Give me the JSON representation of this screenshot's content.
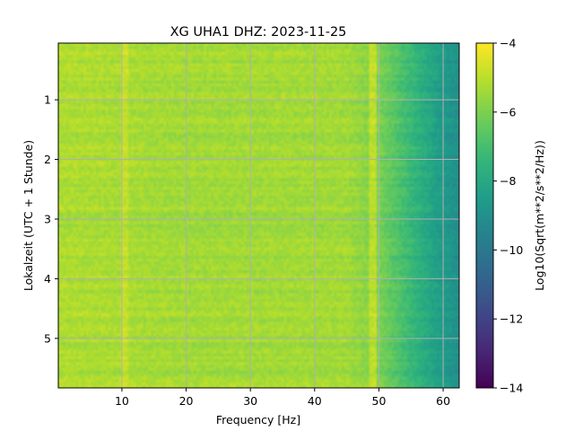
{
  "chart_data": {
    "type": "heatmap",
    "title": "XG UHA1  DHZ: 2023-11-25",
    "xlabel": "Frequency [Hz]",
    "ylabel": "Lokalzeit (UTC + 1 Stunde)",
    "xlim": [
      0.1,
      62.5
    ],
    "ylim": [
      5.83,
      0.05
    ],
    "xticks": [
      10,
      20,
      30,
      40,
      50,
      60
    ],
    "yticks": [
      1,
      2,
      3,
      4,
      5
    ],
    "grid": true,
    "colormap": "viridis",
    "colorbar": {
      "label": "Log10(Sqrt(m**2/s**2/Hz))",
      "range": [
        -14,
        -4
      ],
      "ticks": [
        -4,
        -6,
        -8,
        -10,
        -12,
        -14
      ]
    },
    "rows": 120,
    "cols": 160,
    "levels": {
      "low_freq": -5.2,
      "plateau_20_45hz": -5.4,
      "above_50hz": -6.6,
      "near_60hz": -8.6,
      "high_edge": -9.0,
      "line_10_5hz": -4.9,
      "line_49hz": -5.0
    }
  }
}
